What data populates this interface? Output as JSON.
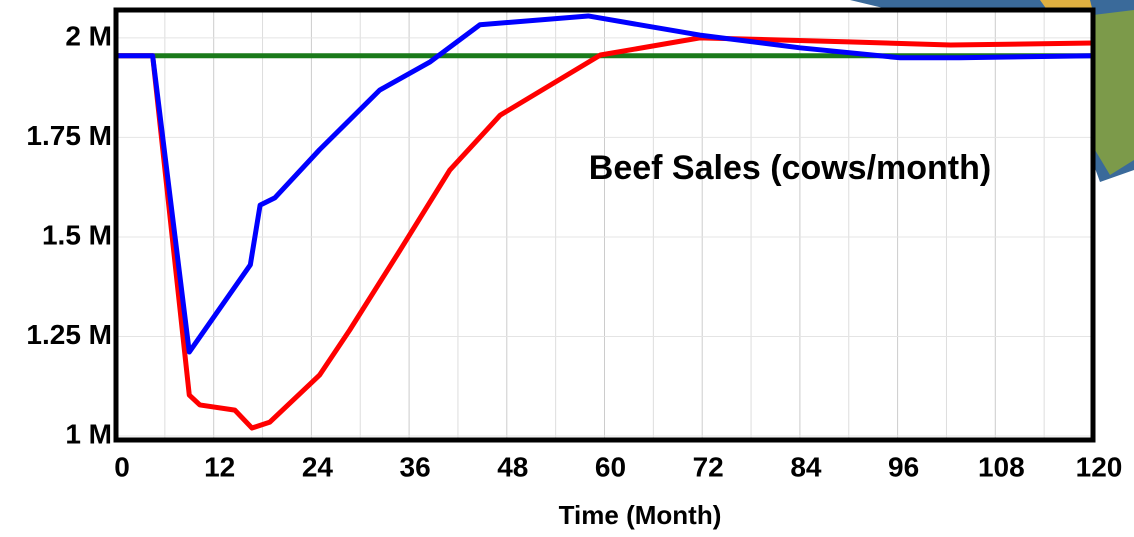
{
  "chart_data": {
    "type": "line",
    "annotation": "Beef Sales (cows/month)",
    "xlabel": "Time (Month)",
    "xlim": [
      0,
      120
    ],
    "xticks": [
      0,
      12,
      24,
      36,
      48,
      60,
      72,
      84,
      96,
      108,
      120
    ],
    "ylim": [
      990000,
      2070000
    ],
    "yticks": [
      {
        "value": 1000000,
        "label": "1 M"
      },
      {
        "value": 1250000,
        "label": "1.25 M"
      },
      {
        "value": 1500000,
        "label": "1.5 M"
      },
      {
        "value": 1750000,
        "label": "1.75 M"
      },
      {
        "value": 2000000,
        "label": "2 M"
      }
    ],
    "grid": true,
    "series": [
      {
        "color": "#1a7a1a",
        "x": [
          0,
          120
        ],
        "values": [
          1955000,
          1955000
        ]
      },
      {
        "color": "#ff0000",
        "x": [
          0,
          4.5,
          9,
          10.3,
          14.6,
          16.7,
          18.9,
          25,
          28.7,
          34.9,
          41,
          47.2,
          59.5,
          71.7,
          90,
          102.5,
          120
        ],
        "values": [
          1955000,
          1955000,
          1103000,
          1078000,
          1065000,
          1020000,
          1035000,
          1153000,
          1266000,
          1467000,
          1668000,
          1806000,
          1957000,
          2000000,
          1990000,
          1982000,
          1987000
        ]
      },
      {
        "color": "#0000ff",
        "x": [
          0,
          4.5,
          9,
          16.5,
          17.7,
          19.5,
          25,
          32.4,
          38.6,
          44.7,
          58,
          71.7,
          84,
          96.3,
          103.6,
          120
        ],
        "values": [
          1955000,
          1955000,
          1211000,
          1430000,
          1580000,
          1598000,
          1719000,
          1869000,
          1940000,
          2033000,
          2055000,
          2007000,
          1975000,
          1950000,
          1950000,
          1955000
        ]
      }
    ]
  }
}
